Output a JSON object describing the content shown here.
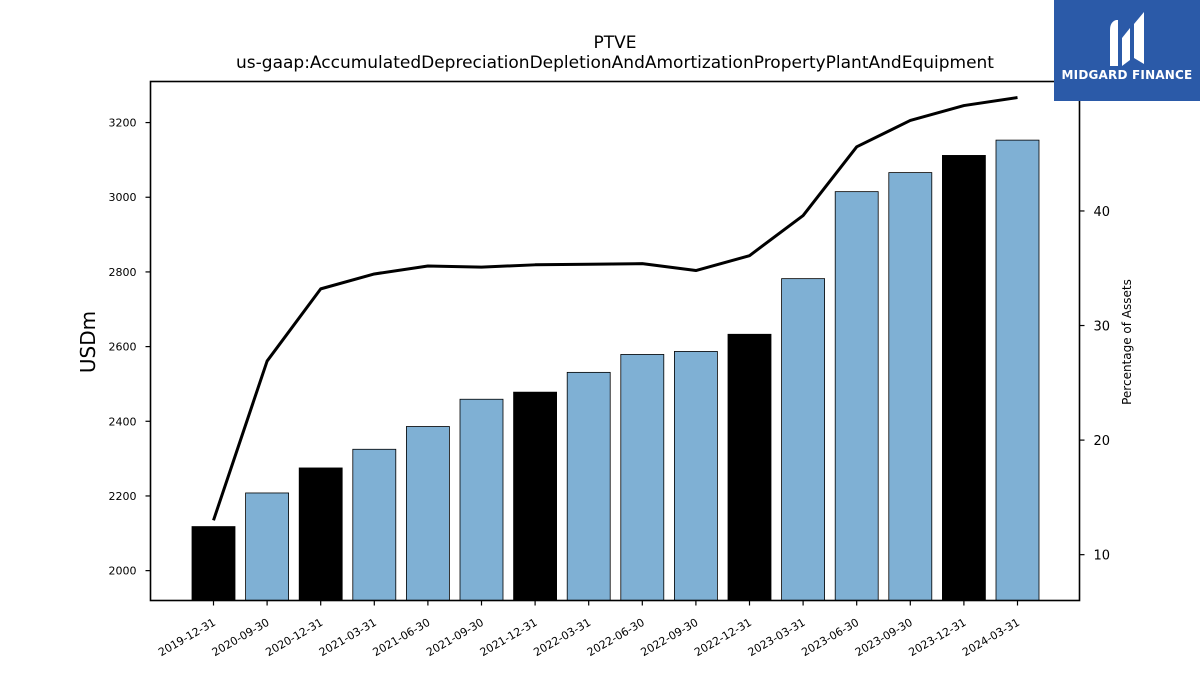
{
  "chart_data": {
    "type": "bar",
    "title": "PTVE",
    "subtitle": "us-gaap:AccumulatedDepreciationDepletionAndAmortizationPropertyPlantAndEquipment",
    "ylabel": "USDm",
    "y2label": "Percentage of Assets",
    "categories": [
      "2019-12-31",
      "2020-09-30",
      "2020-12-31",
      "2021-03-31",
      "2021-06-30",
      "2021-09-30",
      "2021-12-31",
      "2022-03-31",
      "2022-06-30",
      "2022-09-30",
      "2022-12-31",
      "2023-03-31",
      "2023-06-30",
      "2023-09-30",
      "2023-12-31",
      "2024-03-31"
    ],
    "values": [
      2118,
      2208,
      2275,
      2325,
      2386,
      2459,
      2478,
      2531,
      2579,
      2587,
      2633,
      2782,
      3015,
      3066,
      3112,
      3153
    ],
    "bar_colors": [
      "#000000",
      "#7fb0d4",
      "#000000",
      "#7fb0d4",
      "#7fb0d4",
      "#7fb0d4",
      "#000000",
      "#7fb0d4",
      "#7fb0d4",
      "#7fb0d4",
      "#000000",
      "#7fb0d4",
      "#7fb0d4",
      "#7fb0d4",
      "#000000",
      "#7fb0d4"
    ],
    "line": {
      "name": "Percentage of Assets",
      "axis": "right",
      "values": [
        13.0,
        26.9,
        33.2,
        34.5,
        35.2,
        35.1,
        35.3,
        35.35,
        35.4,
        34.8,
        36.1,
        39.6,
        45.6,
        47.9,
        49.2,
        49.9
      ]
    },
    "ylim": [
      1920,
      3310
    ],
    "y_ticks": [
      2000,
      2200,
      2400,
      2600,
      2800,
      3000,
      3200
    ],
    "y2lim": [
      6.0,
      51.3
    ],
    "y2_ticks": [
      10,
      20,
      30,
      40
    ],
    "colors": {
      "highlight": "#000000",
      "bar": "#7fb0d4",
      "line": "#000000"
    },
    "grid": false,
    "legend": "none"
  },
  "logo": {
    "text": "MIDGARD FINANCE",
    "background": "#2b5aa8"
  }
}
